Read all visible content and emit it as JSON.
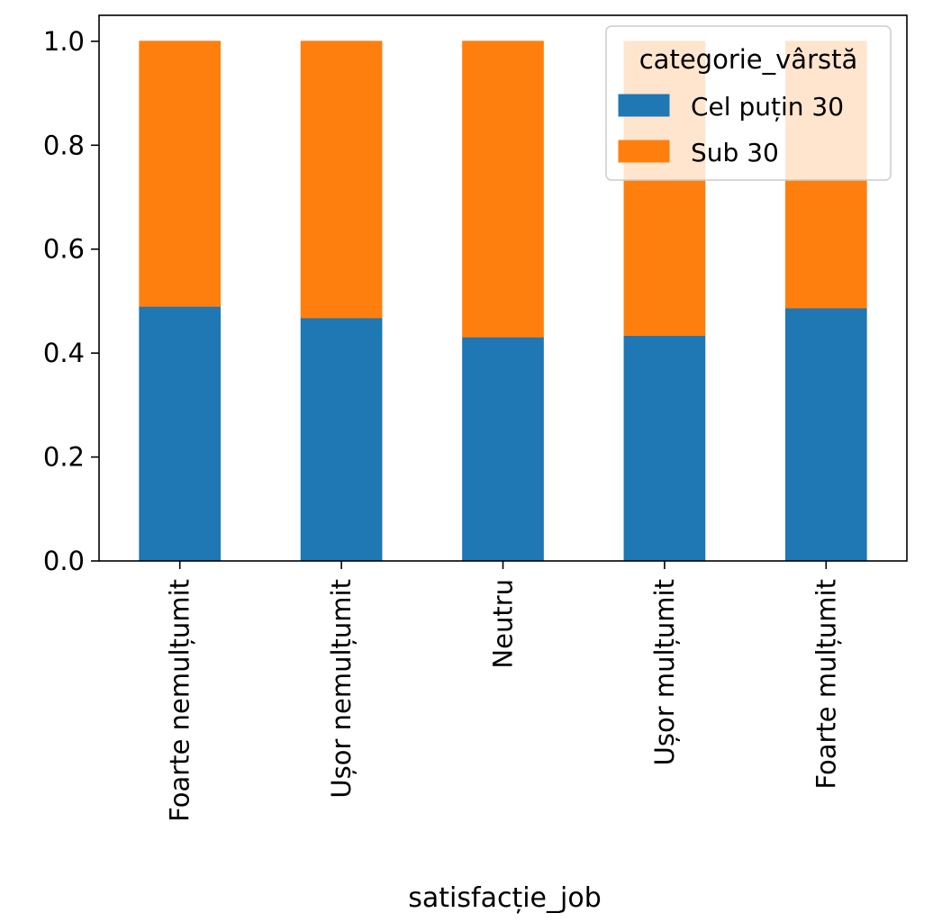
{
  "chart_data": {
    "type": "bar",
    "stacked": true,
    "categories": [
      "Foarte nemulțumit",
      "Ușor nemulțumit",
      "Neutru",
      "Ușor mulțumit",
      "Foarte mulțumit"
    ],
    "series": [
      {
        "name": "Cel puțin 30",
        "color": "#1f77b4",
        "values": [
          0.49,
          0.468,
          0.431,
          0.434,
          0.487
        ]
      },
      {
        "name": "Sub 30",
        "color": "#ff7f0e",
        "values": [
          0.51,
          0.532,
          0.569,
          0.566,
          0.513
        ]
      }
    ],
    "xlabel": "satisfacție_job",
    "ylabel": "",
    "ylim": [
      0,
      1.05
    ],
    "yticks": [
      "0.0",
      "0.2",
      "0.4",
      "0.6",
      "0.8",
      "1.0"
    ],
    "legend": {
      "title": "categorie_vârstă",
      "placement": "top-right"
    },
    "grid": false
  }
}
